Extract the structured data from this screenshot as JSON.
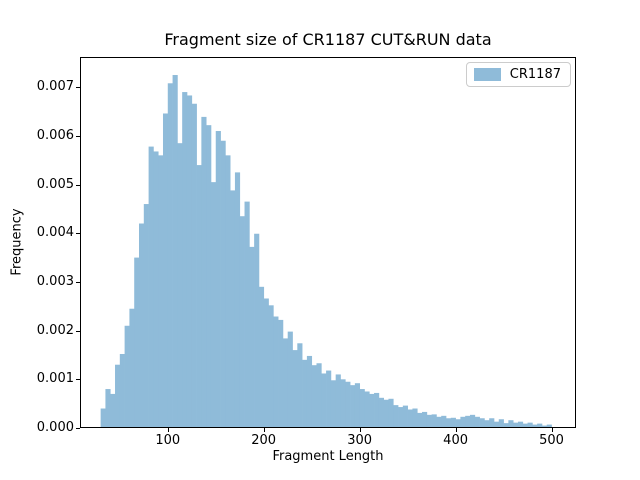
{
  "legend": {
    "label": "CR1187",
    "swatch_color": "#8fbbd9",
    "border_color": "#cccccc"
  },
  "colors": {
    "bar_fill": "#8fbbd9",
    "axis": "#000000",
    "background": "#ffffff"
  },
  "chart_data": {
    "type": "bar",
    "subtype": "histogram",
    "title": "Fragment size of CR1187 CUT&RUN data",
    "xlabel": "Fragment Length",
    "ylabel": "Frequency",
    "legend_position": "upper right",
    "grid": false,
    "xlim": [
      8.5,
      525.5
    ],
    "ylim": [
      0,
      0.00762
    ],
    "x_ticks": [
      100,
      200,
      300,
      400,
      500
    ],
    "y_ticks": [
      0,
      0.001,
      0.002,
      0.003,
      0.004,
      0.005,
      0.006,
      0.007
    ],
    "y_tick_labels": [
      "0.000",
      "0.001",
      "0.002",
      "0.003",
      "0.004",
      "0.005",
      "0.006",
      "0.007"
    ],
    "series": [
      {
        "name": "CR1187",
        "color": "#8fbbd9",
        "bin_start": 30,
        "bin_width": 5,
        "values": [
          0.0004,
          0.0008,
          0.0007,
          0.0013,
          0.00152,
          0.0021,
          0.00245,
          0.0035,
          0.0042,
          0.0046,
          0.00578,
          0.00568,
          0.0056,
          0.00646,
          0.00708,
          0.00725,
          0.00585,
          0.0069,
          0.00683,
          0.00666,
          0.0054,
          0.00639,
          0.00622,
          0.00505,
          0.0061,
          0.0059,
          0.0056,
          0.00488,
          0.00525,
          0.00435,
          0.00465,
          0.00372,
          0.00399,
          0.0029,
          0.00266,
          0.00252,
          0.00229,
          0.00222,
          0.00184,
          0.00198,
          0.0016,
          0.00174,
          0.0014,
          0.00148,
          0.00129,
          0.00133,
          0.00112,
          0.00118,
          0.00098,
          0.0011,
          0.001,
          0.00095,
          0.00088,
          0.00092,
          0.0008,
          0.00075,
          0.0007,
          0.00072,
          0.00062,
          0.00058,
          0.0006,
          0.00047,
          0.00043,
          0.00046,
          0.00038,
          0.0004,
          0.00031,
          0.00033,
          0.00027,
          0.00028,
          0.00023,
          0.00025,
          0.0002,
          0.00021,
          0.00018,
          0.00023,
          0.00025,
          0.00027,
          0.00023,
          0.0002,
          0.00016,
          0.0002,
          0.00013,
          0.00018,
          0.0001,
          0.00016,
          0.00011,
          0.00013,
          9e-05,
          0.00011,
          7e-05,
          9e-05,
          5e-05,
          7e-05
        ]
      }
    ]
  }
}
